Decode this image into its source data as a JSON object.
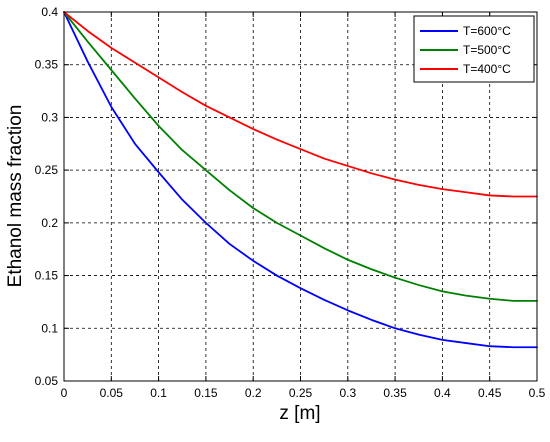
{
  "chart_data": {
    "type": "line",
    "title": "",
    "xlabel": "z [m]",
    "ylabel": "Ethanol mass fraction",
    "xlim": [
      0,
      0.5
    ],
    "ylim": [
      0.05,
      0.4
    ],
    "xticks": [
      0,
      0.05,
      0.1,
      0.15,
      0.2,
      0.25,
      0.3,
      0.35,
      0.4,
      0.45,
      0.5
    ],
    "yticks": [
      0.05,
      0.1,
      0.15,
      0.2,
      0.25,
      0.3,
      0.35,
      0.4
    ],
    "xtick_labels": [
      "0",
      "0.05",
      "0.1",
      "0.15",
      "0.2",
      "0.25",
      "0.3",
      "0.35",
      "0.4",
      "0.45",
      "0.5"
    ],
    "ytick_labels": [
      "0.05",
      "0.1",
      "0.15",
      "0.2",
      "0.25",
      "0.3",
      "0.35",
      "0.4"
    ],
    "grid": true,
    "grid_style": "dashed",
    "legend_position": "top-right",
    "series": [
      {
        "name": "T=600°C",
        "color": "#0000ff",
        "x": [
          0,
          0.025,
          0.05,
          0.075,
          0.1,
          0.125,
          0.15,
          0.175,
          0.2,
          0.225,
          0.25,
          0.275,
          0.3,
          0.325,
          0.35,
          0.375,
          0.4,
          0.425,
          0.45,
          0.475,
          0.5
        ],
        "values": [
          0.4,
          0.353,
          0.31,
          0.275,
          0.248,
          0.222,
          0.2,
          0.18,
          0.164,
          0.15,
          0.138,
          0.127,
          0.117,
          0.108,
          0.1,
          0.094,
          0.089,
          0.086,
          0.083,
          0.082,
          0.082
        ]
      },
      {
        "name": "T=500°C",
        "color": "#008000",
        "x": [
          0,
          0.025,
          0.05,
          0.075,
          0.1,
          0.125,
          0.15,
          0.175,
          0.2,
          0.225,
          0.25,
          0.275,
          0.3,
          0.325,
          0.35,
          0.375,
          0.4,
          0.425,
          0.45,
          0.475,
          0.5
        ],
        "values": [
          0.4,
          0.372,
          0.345,
          0.318,
          0.292,
          0.269,
          0.25,
          0.231,
          0.214,
          0.2,
          0.188,
          0.176,
          0.165,
          0.156,
          0.148,
          0.141,
          0.135,
          0.131,
          0.128,
          0.126,
          0.126
        ]
      },
      {
        "name": "T=400°C",
        "color": "#ff0000",
        "x": [
          0,
          0.025,
          0.05,
          0.075,
          0.1,
          0.125,
          0.15,
          0.175,
          0.2,
          0.225,
          0.25,
          0.275,
          0.3,
          0.325,
          0.35,
          0.375,
          0.4,
          0.425,
          0.45,
          0.475,
          0.5
        ],
        "values": [
          0.4,
          0.382,
          0.366,
          0.352,
          0.338,
          0.324,
          0.311,
          0.3,
          0.289,
          0.279,
          0.27,
          0.261,
          0.254,
          0.247,
          0.241,
          0.236,
          0.232,
          0.229,
          0.226,
          0.225,
          0.225
        ]
      }
    ]
  }
}
